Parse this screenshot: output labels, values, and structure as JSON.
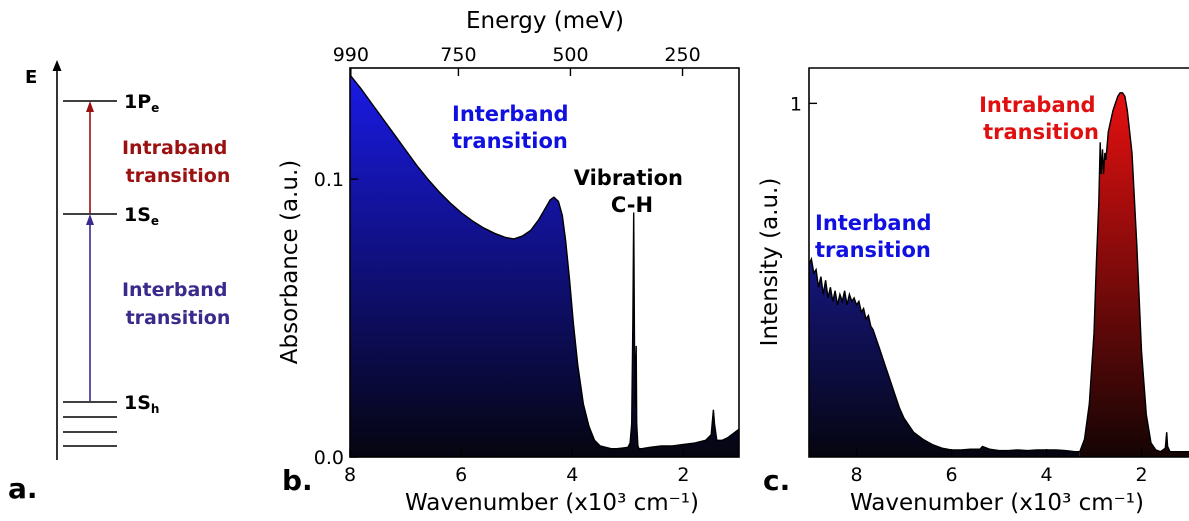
{
  "panel_a": {
    "label": "a.",
    "axis_label": "E",
    "levels": [
      {
        "name": "1P",
        "sub": "e"
      },
      {
        "name": "1S",
        "sub": "e"
      },
      {
        "name": "1S",
        "sub": "h"
      }
    ],
    "intraband_label": [
      "Intraband",
      "transition"
    ],
    "interband_label": [
      "Interband",
      "transition"
    ],
    "colors": {
      "intraband": "#9b1010",
      "interband": "#3a2a8c",
      "axis": "#000000"
    }
  },
  "chart_data": [
    {
      "type": "area",
      "panel_label": "b.",
      "xlabel": "Wavenumber (x10³ cm⁻¹)",
      "ylabel": "Absorbance (a.u.)",
      "x2label": "Energy (meV)",
      "xlim": [
        8,
        1
      ],
      "ylim": [
        0,
        0.14
      ],
      "xticks": [
        8,
        6,
        4,
        2
      ],
      "yticks": [
        {
          "v": 0.0,
          "label": "0.0"
        },
        {
          "v": 0.1,
          "label": "0.1"
        }
      ],
      "x2ticks": [
        {
          "x": 7.985,
          "label": "990"
        },
        {
          "x": 6.049,
          "label": "750"
        },
        {
          "x": 4.033,
          "label": "500"
        },
        {
          "x": 2.016,
          "label": "250"
        }
      ],
      "annotations": [
        {
          "lines": [
            "Interband",
            "transition"
          ],
          "color": "#1010e0"
        },
        {
          "lines": [
            "Vibration",
            "C-H"
          ],
          "color": "#000000"
        }
      ],
      "fill_top": "#1a1ae6",
      "fill_bottom": "#050510",
      "x": [
        8.0,
        7.9,
        7.8,
        7.6,
        7.4,
        7.2,
        7.0,
        6.8,
        6.6,
        6.4,
        6.2,
        6.0,
        5.8,
        5.6,
        5.4,
        5.2,
        5.05,
        4.9,
        4.75,
        4.6,
        4.5,
        4.4,
        4.33,
        4.25,
        4.18,
        4.12,
        4.05,
        3.98,
        3.9,
        3.8,
        3.7,
        3.6,
        3.5,
        3.4,
        3.3,
        3.2,
        3.1,
        3.0,
        2.96,
        2.93,
        2.91,
        2.895,
        2.88,
        2.865,
        2.85,
        2.84,
        2.82,
        2.8,
        2.75,
        2.6,
        2.4,
        2.2,
        2.0,
        1.8,
        1.6,
        1.5,
        1.46,
        1.44,
        1.4,
        1.3,
        1.2,
        1.1,
        1.0
      ],
      "y": [
        0.1375,
        0.135,
        0.1325,
        0.127,
        0.1215,
        0.116,
        0.1105,
        0.105,
        0.1,
        0.0955,
        0.0915,
        0.088,
        0.085,
        0.0825,
        0.0805,
        0.079,
        0.0785,
        0.0795,
        0.0815,
        0.0855,
        0.089,
        0.0925,
        0.0935,
        0.092,
        0.087,
        0.078,
        0.064,
        0.048,
        0.033,
        0.019,
        0.011,
        0.006,
        0.004,
        0.0035,
        0.003,
        0.003,
        0.0032,
        0.0035,
        0.005,
        0.012,
        0.05,
        0.088,
        0.04,
        0.018,
        0.04,
        0.012,
        0.004,
        0.003,
        0.003,
        0.0035,
        0.004,
        0.004,
        0.0045,
        0.005,
        0.006,
        0.008,
        0.017,
        0.012,
        0.006,
        0.006,
        0.007,
        0.0085,
        0.01
      ]
    },
    {
      "type": "area",
      "panel_label": "c.",
      "xlabel": "Wavenumber (x10³ cm⁻¹)",
      "ylabel": "Intensity (a.u.)",
      "xlim": [
        9.0,
        1.0
      ],
      "ylim": [
        0,
        1.1
      ],
      "xticks": [
        8,
        6,
        4,
        2
      ],
      "yticks": [
        {
          "v": 1.0,
          "label": "1"
        }
      ],
      "annotations": [
        {
          "lines": [
            "Intraband",
            "transition"
          ],
          "color": "#e01010"
        },
        {
          "lines": [
            "Interband",
            "transition"
          ],
          "color": "#1010e0"
        }
      ],
      "interband": {
        "fill_top": "#161680",
        "fill_bottom": "#050510",
        "x": [
          9.0,
          8.95,
          8.9,
          8.85,
          8.8,
          8.75,
          8.7,
          8.65,
          8.6,
          8.55,
          8.5,
          8.45,
          8.4,
          8.35,
          8.3,
          8.25,
          8.2,
          8.15,
          8.1,
          8.05,
          8.0,
          7.95,
          7.9,
          7.85,
          7.8,
          7.75,
          7.7,
          7.65,
          7.6,
          7.5,
          7.4,
          7.3,
          7.2,
          7.1,
          7.0,
          6.8,
          6.6,
          6.4,
          6.2,
          6.0,
          5.8,
          5.6,
          5.4,
          5.35,
          5.2,
          5.0,
          4.8,
          4.6,
          4.4,
          4.2,
          4.0,
          3.8,
          3.6,
          3.4,
          3.3
        ],
        "y": [
          0.545,
          0.56,
          0.52,
          0.53,
          0.48,
          0.51,
          0.46,
          0.5,
          0.45,
          0.48,
          0.44,
          0.47,
          0.43,
          0.46,
          0.44,
          0.47,
          0.43,
          0.46,
          0.44,
          0.45,
          0.43,
          0.44,
          0.41,
          0.42,
          0.39,
          0.4,
          0.37,
          0.36,
          0.34,
          0.3,
          0.26,
          0.22,
          0.18,
          0.14,
          0.11,
          0.07,
          0.05,
          0.035,
          0.025,
          0.02,
          0.02,
          0.022,
          0.022,
          0.03,
          0.022,
          0.018,
          0.018,
          0.02,
          0.018,
          0.02,
          0.02,
          0.02,
          0.018,
          0.015,
          0.015
        ]
      },
      "intraband": {
        "fill_top": "#e61010",
        "fill_bottom": "#140404",
        "x": [
          3.3,
          3.2,
          3.1,
          3.0,
          2.95,
          2.9,
          2.87,
          2.85,
          2.82,
          2.8,
          2.77,
          2.75,
          2.7,
          2.6,
          2.5,
          2.45,
          2.4,
          2.35,
          2.3,
          2.2,
          2.1,
          2.0,
          1.9,
          1.8,
          1.7,
          1.6,
          1.55,
          1.5,
          1.47,
          1.45,
          1.4,
          1.3,
          1.2,
          1.1,
          1.0
        ],
        "y": [
          0.015,
          0.05,
          0.15,
          0.35,
          0.55,
          0.72,
          0.89,
          0.8,
          0.87,
          0.8,
          0.86,
          0.84,
          0.92,
          0.98,
          1.02,
          1.03,
          1.03,
          1.02,
          0.98,
          0.86,
          0.6,
          0.3,
          0.12,
          0.04,
          0.02,
          0.015,
          0.02,
          0.025,
          0.07,
          0.03,
          0.015,
          0.015,
          0.015,
          0.015,
          0.015
        ]
      }
    }
  ]
}
